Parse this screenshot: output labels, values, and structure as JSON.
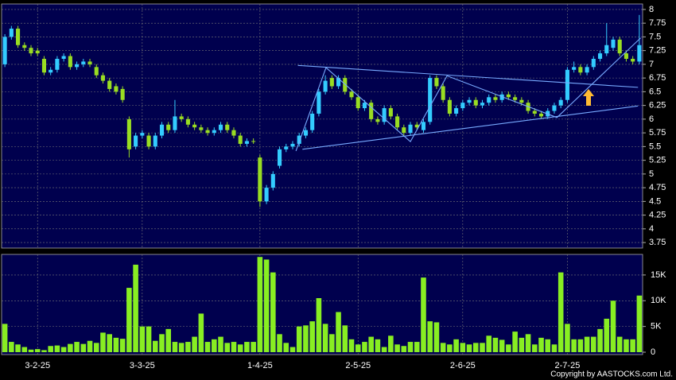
{
  "chart_data": {
    "type": "candlestick",
    "categories": [
      null,
      null,
      null,
      null,
      null,
      "3-2-25",
      null,
      null,
      null,
      null,
      null,
      null,
      null,
      null,
      null,
      null,
      null,
      null,
      null,
      null,
      null,
      "3-3-25",
      null,
      null,
      null,
      null,
      null,
      null,
      null,
      null,
      null,
      null,
      null,
      null,
      null,
      null,
      null,
      null,
      null,
      "1-4-25",
      null,
      null,
      null,
      null,
      null,
      null,
      null,
      null,
      null,
      null,
      null,
      null,
      null,
      null,
      "2-5-25",
      null,
      null,
      null,
      null,
      null,
      null,
      null,
      null,
      null,
      null,
      null,
      null,
      null,
      null,
      null,
      "2-6-25",
      null,
      null,
      null,
      null,
      null,
      null,
      null,
      null,
      null,
      null,
      null,
      null,
      null,
      null,
      null,
      "2-7-25",
      null,
      null,
      null,
      null,
      null,
      null,
      null,
      null,
      null,
      null,
      null
    ],
    "open": [
      7.0,
      7.5,
      7.65,
      7.35,
      7.3,
      7.25,
      7.1,
      6.85,
      6.9,
      7.1,
      7.15,
      6.95,
      7.0,
      7.05,
      6.95,
      6.8,
      6.7,
      6.6,
      6.55,
      6.0,
      5.5,
      5.7,
      5.7,
      5.5,
      5.7,
      5.9,
      5.8,
      6.05,
      6.0,
      5.9,
      5.85,
      5.8,
      5.75,
      5.8,
      5.9,
      5.8,
      5.7,
      5.55,
      5.6,
      5.3,
      4.5,
      4.75,
      5.15,
      5.45,
      5.5,
      5.55,
      5.7,
      5.8,
      6.1,
      6.5,
      6.75,
      6.6,
      6.75,
      6.5,
      6.4,
      6.2,
      6.3,
      6.0,
      5.95,
      6.2,
      6.05,
      5.85,
      5.75,
      5.9,
      5.8,
      5.95,
      6.75,
      6.6,
      6.35,
      6.1,
      6.2,
      6.3,
      6.35,
      6.25,
      6.3,
      6.4,
      6.35,
      6.45,
      6.4,
      6.35,
      6.3,
      6.15,
      6.1,
      6.05,
      6.15,
      6.25,
      6.35,
      6.9,
      6.95,
      6.85,
      6.95,
      7.1,
      7.2,
      7.3,
      7.45,
      7.2,
      7.1,
      7.05
    ],
    "high": [
      7.55,
      7.7,
      7.7,
      7.4,
      7.35,
      7.3,
      7.15,
      6.95,
      7.15,
      7.2,
      7.2,
      7.05,
      7.1,
      7.1,
      7.0,
      6.85,
      6.75,
      6.65,
      6.6,
      6.05,
      5.75,
      5.8,
      5.75,
      5.75,
      5.95,
      5.95,
      6.35,
      6.1,
      6.05,
      5.95,
      5.9,
      5.85,
      5.85,
      5.95,
      5.95,
      5.85,
      5.75,
      5.65,
      5.65,
      5.35,
      4.8,
      5.05,
      5.5,
      5.55,
      5.6,
      5.75,
      5.85,
      6.15,
      6.55,
      6.8,
      6.8,
      6.8,
      6.8,
      6.55,
      6.45,
      6.35,
      6.35,
      6.05,
      6.25,
      6.25,
      6.1,
      5.9,
      5.95,
      5.95,
      6.0,
      6.8,
      6.8,
      6.65,
      6.4,
      6.25,
      6.35,
      6.4,
      6.4,
      6.35,
      6.45,
      6.45,
      6.5,
      6.5,
      6.45,
      6.4,
      6.35,
      6.2,
      6.15,
      6.2,
      6.3,
      6.4,
      6.95,
      7.05,
      7.0,
      7.0,
      7.15,
      7.25,
      7.75,
      7.5,
      7.5,
      7.25,
      7.15,
      7.9
    ],
    "low": [
      6.95,
      7.45,
      7.3,
      7.25,
      7.15,
      7.15,
      6.8,
      6.8,
      6.85,
      7.05,
      6.9,
      6.9,
      6.95,
      6.95,
      6.75,
      6.65,
      6.5,
      6.45,
      6.3,
      5.3,
      5.45,
      5.65,
      5.45,
      5.45,
      5.65,
      5.75,
      5.75,
      5.95,
      5.85,
      5.8,
      5.75,
      5.7,
      5.7,
      5.75,
      5.75,
      5.65,
      5.5,
      5.5,
      5.55,
      4.4,
      4.45,
      4.7,
      5.1,
      5.4,
      5.45,
      5.5,
      5.65,
      5.75,
      6.05,
      6.45,
      6.55,
      6.55,
      6.45,
      6.35,
      6.15,
      6.15,
      5.95,
      5.9,
      5.9,
      6.0,
      5.8,
      5.7,
      5.7,
      5.8,
      5.75,
      5.9,
      6.55,
      6.3,
      6.05,
      6.05,
      6.15,
      6.25,
      6.2,
      6.2,
      6.25,
      6.3,
      6.3,
      6.35,
      6.3,
      6.25,
      6.1,
      6.05,
      6.0,
      6.0,
      6.1,
      6.2,
      6.3,
      6.85,
      6.8,
      6.8,
      6.9,
      7.05,
      7.15,
      7.25,
      7.15,
      7.05,
      7.0,
      7.0
    ],
    "close": [
      7.5,
      7.65,
      7.35,
      7.3,
      7.2,
      7.2,
      6.85,
      6.9,
      7.1,
      7.15,
      6.95,
      7.0,
      7.05,
      7.0,
      6.8,
      6.7,
      6.55,
      6.5,
      6.35,
      5.45,
      5.7,
      5.75,
      5.5,
      5.7,
      5.9,
      5.8,
      6.05,
      6.0,
      5.9,
      5.85,
      5.8,
      5.75,
      5.8,
      5.9,
      5.8,
      5.7,
      5.55,
      5.6,
      5.6,
      4.5,
      4.75,
      5.0,
      5.45,
      5.5,
      5.55,
      5.7,
      5.8,
      6.1,
      6.5,
      6.7,
      6.6,
      6.75,
      6.5,
      6.4,
      6.2,
      6.3,
      6.0,
      5.95,
      6.2,
      6.05,
      5.85,
      5.75,
      5.9,
      5.85,
      5.95,
      6.75,
      6.6,
      6.35,
      6.1,
      6.2,
      6.3,
      6.35,
      6.25,
      6.3,
      6.4,
      6.35,
      6.45,
      6.4,
      6.35,
      6.3,
      6.15,
      6.1,
      6.05,
      6.15,
      6.25,
      6.35,
      6.9,
      6.95,
      6.85,
      6.95,
      7.1,
      7.2,
      7.35,
      7.45,
      7.2,
      7.1,
      7.05,
      7.35
    ],
    "volume": [
      5500,
      2000,
      1500,
      1000,
      500,
      600,
      400,
      1200,
      1300,
      1000,
      1600,
      2000,
      1600,
      2200,
      1800,
      3800,
      3500,
      2800,
      2600,
      12500,
      17000,
      5000,
      5000,
      2200,
      3500,
      4500,
      2000,
      1800,
      2000,
      3000,
      7500,
      2000,
      2500,
      3000,
      1800,
      2000,
      1500,
      2000,
      2000,
      18500,
      18000,
      15500,
      3500,
      1800,
      1000,
      5000,
      5200,
      6000,
      10500,
      5500,
      3500,
      7800,
      5200,
      2500,
      1500,
      2000,
      3000,
      2500,
      1000,
      3200,
      1500,
      1200,
      2000,
      2000,
      14500,
      6000,
      5800,
      1800,
      1500,
      2500,
      1800,
      1500,
      1800,
      1800,
      3200,
      2800,
      2400,
      1500,
      4000,
      2800,
      3500,
      1500,
      2800,
      2500,
      1500,
      15500,
      5500,
      2500,
      2500,
      3000,
      3000,
      4500,
      6500,
      10000,
      3000,
      2500,
      2500,
      11000
    ],
    "up_color": "#33ccff",
    "down_color": "#99dd22",
    "volume_color": "#88ee22",
    "ylim": [
      3.65,
      8.1
    ],
    "yticks": [
      3.75,
      4,
      4.25,
      4.5,
      4.75,
      5,
      5.25,
      5.5,
      5.75,
      6,
      6.25,
      6.5,
      6.75,
      7,
      7.25,
      7.5,
      7.75,
      8
    ],
    "volume_ylim": [
      0,
      19000
    ],
    "volume_yticks": [
      0,
      {
        "value": 5000,
        "label": "5K"
      },
      {
        "value": 10000,
        "label": "10K"
      },
      {
        "value": 15000,
        "label": "15K"
      }
    ],
    "grid": true,
    "trendlines": [
      {
        "x": [
          44.8,
          96.8
        ],
        "values": [
          6.98,
          6.58
        ]
      },
      {
        "x": [
          45.5,
          96.8
        ],
        "values": [
          5.45,
          6.24
        ]
      },
      {
        "x": [
          44.5,
          49.1,
          62.0,
          67.6,
          84.4,
          97.2
        ],
        "values": [
          5.42,
          6.94,
          5.59,
          6.79,
          6.03,
          7.48
        ]
      }
    ],
    "trendline_color": "#77aaff",
    "copyright": "Copyright by AASTOCKS.com Ltd."
  }
}
